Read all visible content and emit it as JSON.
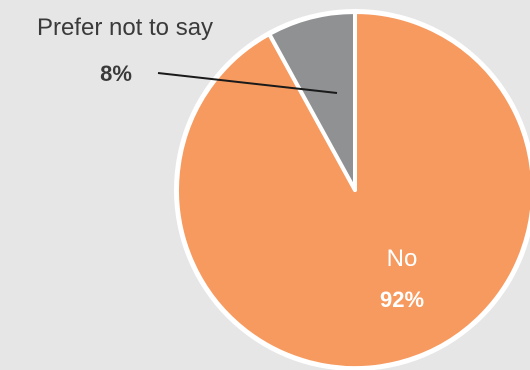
{
  "chart_data": {
    "type": "pie",
    "slices": [
      {
        "label": "No",
        "value_label": "92%",
        "value": 92,
        "color": "#f79a5f"
      },
      {
        "label": "Prefer not to say",
        "value_label": "8%",
        "value": 8,
        "color": "#8f9193"
      }
    ],
    "title": "",
    "legend": "none",
    "background": "#e6e6e6",
    "slice_border_color": "#ffffff",
    "label_color_inside": "#ffffff",
    "label_color_outside": "#3a3a3a",
    "leader_line_color": "#1a1a1a"
  }
}
